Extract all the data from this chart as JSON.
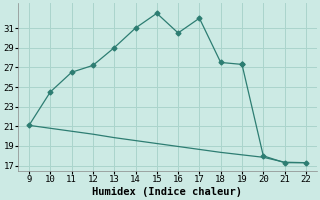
{
  "upper_x": [
    9,
    10,
    11,
    12,
    13,
    14,
    15,
    16,
    17,
    18,
    19,
    19,
    20,
    21,
    22
  ],
  "upper_y": [
    21.1,
    24.5,
    26.5,
    27.2,
    29.0,
    31.0,
    32.5,
    30.5,
    32.0,
    27.5,
    27.3,
    27.3,
    18.0,
    17.3,
    17.3
  ],
  "lower_x": [
    9,
    10,
    11,
    12,
    13,
    14,
    15,
    16,
    17,
    18,
    19,
    20,
    21,
    22
  ],
  "lower_y": [
    21.1,
    20.8,
    20.5,
    20.2,
    19.85,
    19.55,
    19.25,
    18.95,
    18.65,
    18.35,
    18.1,
    17.85,
    17.35,
    17.3
  ],
  "line_color": "#2d7d72",
  "bg_color": "#cceae4",
  "grid_color": "#aad4cc",
  "xlabel": "Humidex (Indice chaleur)",
  "xlim": [
    8.5,
    22.5
  ],
  "ylim": [
    16.5,
    33.5
  ],
  "xticks": [
    9,
    10,
    11,
    12,
    13,
    14,
    15,
    16,
    17,
    18,
    19,
    20,
    21,
    22
  ],
  "yticks": [
    17,
    19,
    21,
    23,
    25,
    27,
    29,
    31
  ],
  "xlabel_fontsize": 7.5,
  "tick_fontsize": 6.5
}
